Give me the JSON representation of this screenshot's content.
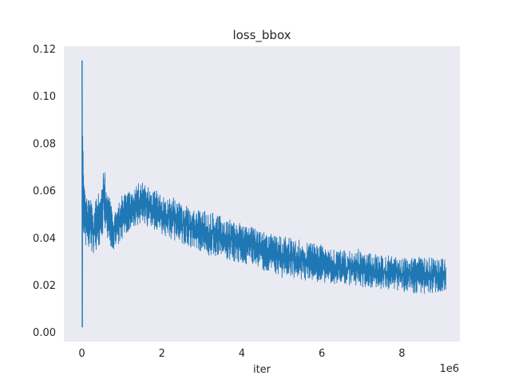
{
  "chart_data": {
    "type": "line",
    "title": "loss_bbox",
    "xlabel": "iter",
    "ylabel": "",
    "x_offset_label": "1e6",
    "xlim": [
      -0.45,
      9.45
    ],
    "ylim": [
      -0.004,
      0.121
    ],
    "x_ticks": [
      0,
      2,
      4,
      6,
      8
    ],
    "x_tick_labels": [
      "0",
      "2",
      "4",
      "6",
      "8"
    ],
    "y_ticks": [
      0.0,
      0.02,
      0.04,
      0.06,
      0.08,
      0.1,
      0.12
    ],
    "y_tick_labels": [
      "0.00",
      "0.02",
      "0.04",
      "0.06",
      "0.08",
      "0.10",
      "0.12"
    ],
    "grid": false,
    "colors": {
      "background": "#eaeaf2",
      "line": "#1f77b4",
      "text": "#262626"
    },
    "series": [
      {
        "x": [
          0,
          0.02,
          0.05,
          0.1,
          0.2,
          0.3,
          0.4,
          0.5,
          0.55,
          0.6,
          0.7,
          0.8,
          0.9,
          1.0,
          1.2,
          1.4,
          1.5,
          1.6,
          1.8,
          2.0,
          2.5,
          3.0,
          3.5,
          4.0,
          4.5,
          5.0,
          5.5,
          6.0,
          6.5,
          7.0,
          7.5,
          8.0,
          8.5,
          9.1
        ],
        "upper": [
          0.115,
          0.09,
          0.063,
          0.058,
          0.056,
          0.055,
          0.058,
          0.063,
          0.07,
          0.066,
          0.056,
          0.052,
          0.054,
          0.058,
          0.061,
          0.063,
          0.064,
          0.062,
          0.06,
          0.058,
          0.055,
          0.052,
          0.049,
          0.046,
          0.043,
          0.041,
          0.039,
          0.037,
          0.035,
          0.034,
          0.033,
          0.032,
          0.032,
          0.031
        ],
        "lower": [
          0.002,
          0.035,
          0.038,
          0.036,
          0.034,
          0.032,
          0.034,
          0.04,
          0.045,
          0.042,
          0.036,
          0.034,
          0.036,
          0.039,
          0.042,
          0.045,
          0.046,
          0.045,
          0.043,
          0.041,
          0.037,
          0.034,
          0.031,
          0.029,
          0.026,
          0.024,
          0.022,
          0.021,
          0.02,
          0.019,
          0.018,
          0.017,
          0.016,
          0.017
        ]
      }
    ]
  }
}
